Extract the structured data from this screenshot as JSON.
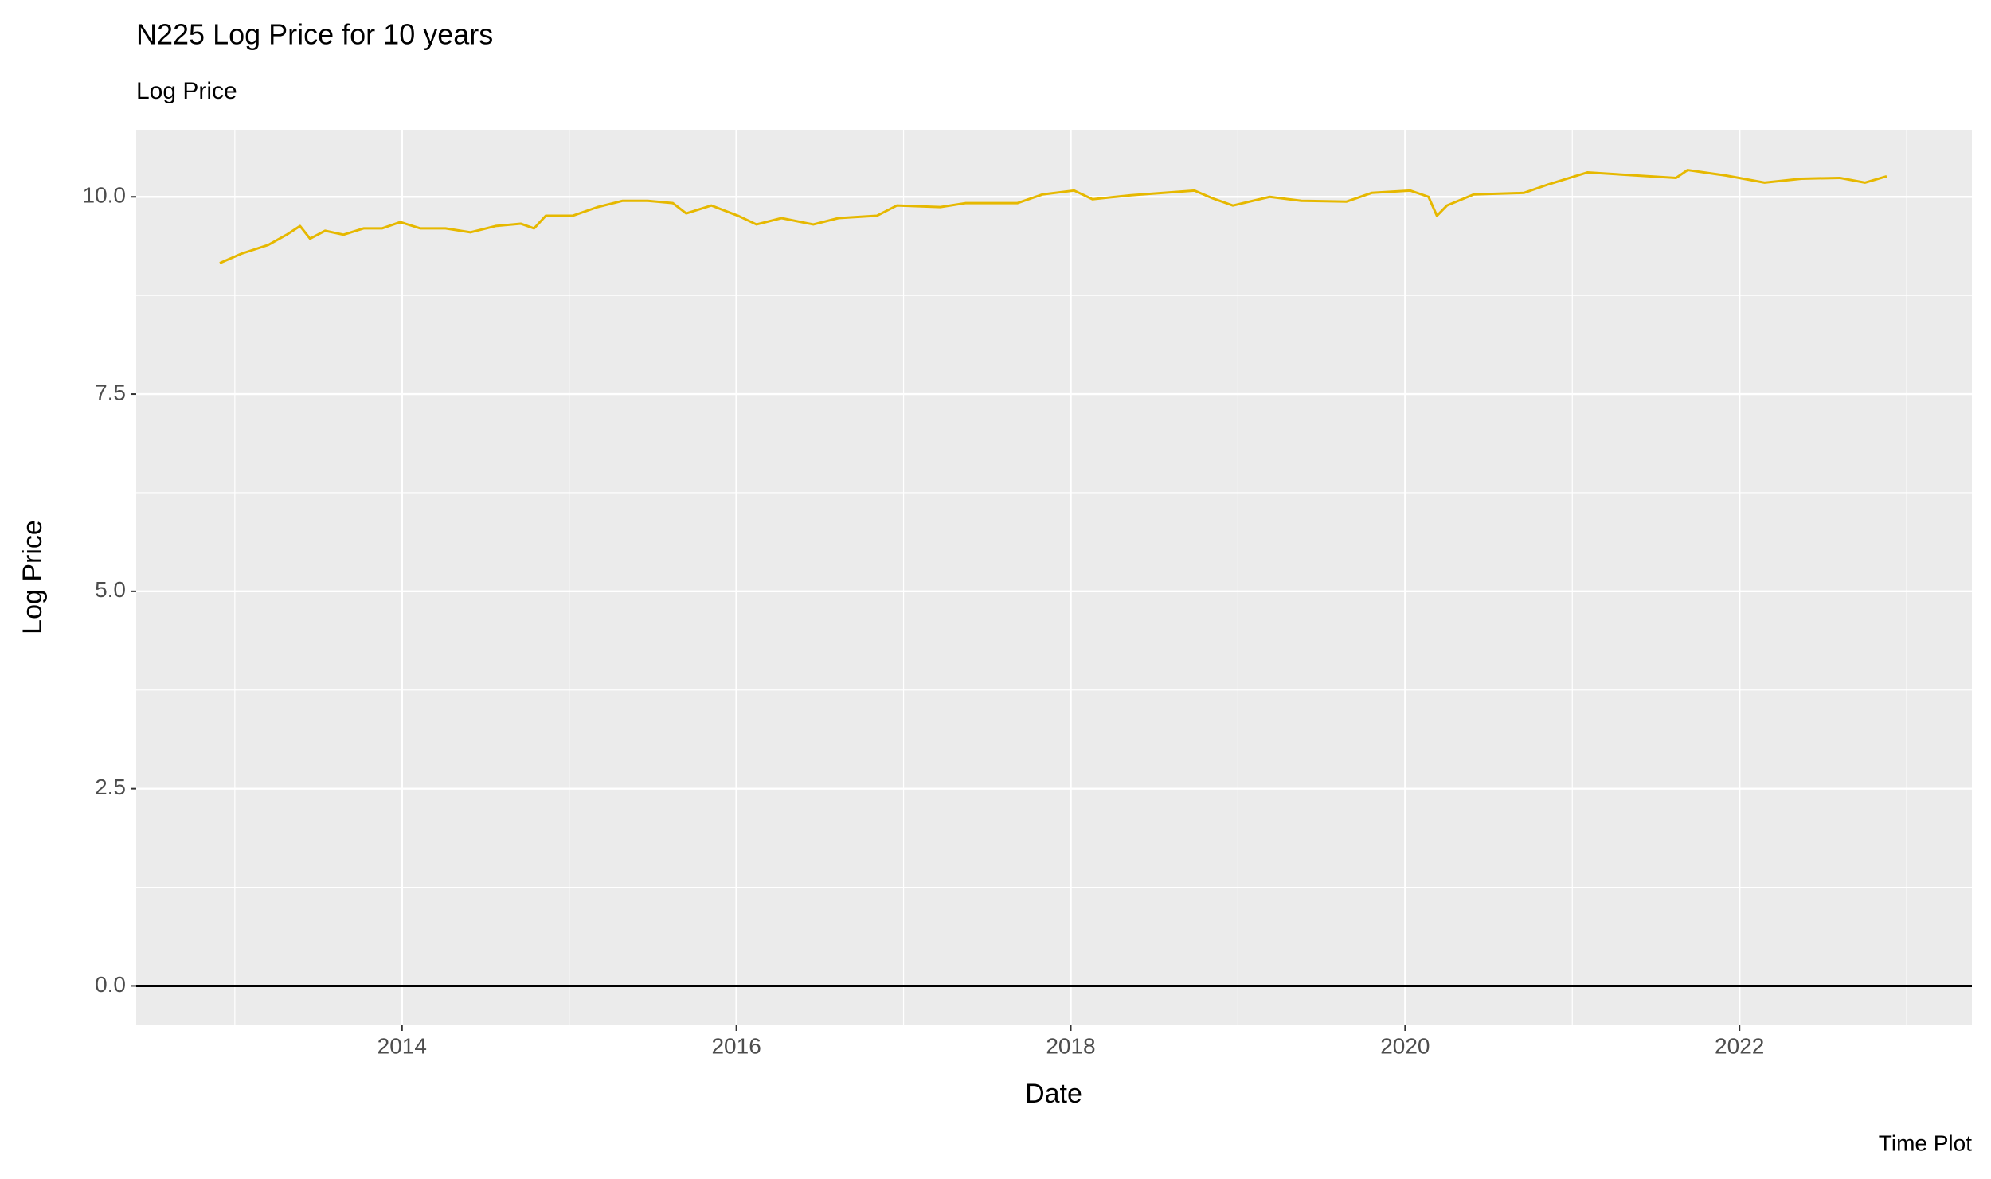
{
  "chart_data": {
    "type": "line",
    "title": "N225 Log Price for 10 years",
    "subtitle": "Log Price",
    "x_label": "Date",
    "y_label": "Log Price",
    "caption": "Time Plot",
    "x": [
      2012.91,
      2013.04,
      2013.2,
      2013.31,
      2013.39,
      2013.45,
      2013.54,
      2013.65,
      2013.77,
      2013.88,
      2013.99,
      2014.11,
      2014.26,
      2014.41,
      2014.56,
      2014.71,
      2014.79,
      2014.86,
      2015.02,
      2015.17,
      2015.32,
      2015.47,
      2015.62,
      2015.7,
      2015.85,
      2016.01,
      2016.12,
      2016.27,
      2016.46,
      2016.61,
      2016.84,
      2016.96,
      2017.22,
      2017.37,
      2017.68,
      2017.83,
      2018.02,
      2018.13,
      2018.36,
      2018.74,
      2018.85,
      2018.97,
      2019.19,
      2019.38,
      2019.65,
      2019.8,
      2020.03,
      2020.14,
      2020.19,
      2020.25,
      2020.41,
      2020.71,
      2020.86,
      2021.09,
      2021.39,
      2021.62,
      2021.69,
      2021.92,
      2022.15,
      2022.37,
      2022.6,
      2022.75,
      2022.88
    ],
    "series": [
      {
        "name": "Log Price",
        "color": "#E6B800",
        "values": [
          9.16,
          9.28,
          9.39,
          9.52,
          9.63,
          9.47,
          9.57,
          9.52,
          9.6,
          9.6,
          9.68,
          9.6,
          9.6,
          9.55,
          9.63,
          9.66,
          9.6,
          9.76,
          9.76,
          9.87,
          9.95,
          9.95,
          9.92,
          9.79,
          9.89,
          9.76,
          9.65,
          9.73,
          9.65,
          9.73,
          9.76,
          9.89,
          9.87,
          9.92,
          9.92,
          10.03,
          10.08,
          9.97,
          10.02,
          10.08,
          9.98,
          9.89,
          10.0,
          9.95,
          9.94,
          10.05,
          10.08,
          10.0,
          9.76,
          9.89,
          10.03,
          10.05,
          10.16,
          10.31,
          10.27,
          10.24,
          10.34,
          10.27,
          10.18,
          10.23,
          10.24,
          10.18,
          10.26
        ]
      }
    ],
    "xlim": [
      2012.41,
      2023.39
    ],
    "xticks": [
      2014,
      2016,
      2018,
      2020,
      2022
    ],
    "ylim": [
      -0.5,
      10.85
    ],
    "yticks": [
      {
        "value": 0,
        "label": "0.0"
      },
      {
        "value": 2.5,
        "label": "2.5"
      },
      {
        "value": 5,
        "label": "5.0"
      },
      {
        "value": 7.5,
        "label": "7.5"
      },
      {
        "value": 10,
        "label": "10.0"
      }
    ],
    "hline": 0,
    "grid": true
  }
}
